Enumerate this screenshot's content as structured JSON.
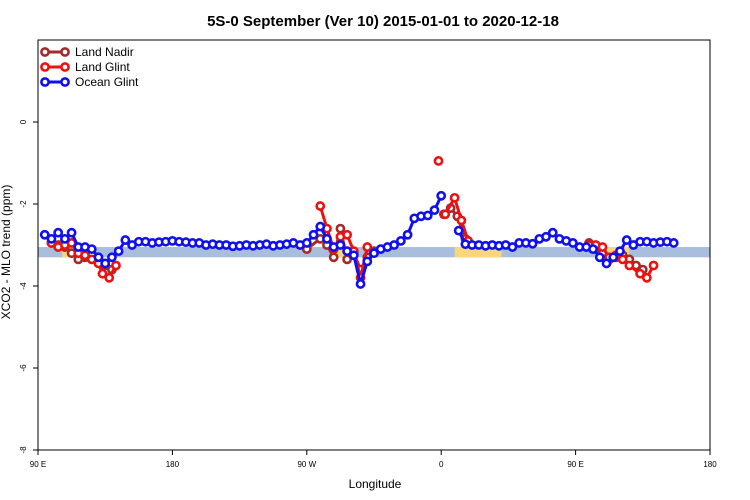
{
  "chart_data": {
    "type": "line",
    "title": "5S-0 September (Ver 10)   2015-01-01 to 2020-12-18",
    "xlabel": "Longitude",
    "ylabel": "XCO2 - MLO trend (ppm)",
    "xlim": [
      0,
      500
    ],
    "ylim": [
      -8,
      2
    ],
    "x_ticks": [
      {
        "value": 0,
        "label": "90 E"
      },
      {
        "value": 100,
        "label": "180"
      },
      {
        "value": 200,
        "label": "90 W"
      },
      {
        "value": 300,
        "label": "0"
      },
      {
        "value": 400,
        "label": "90 E"
      },
      {
        "value": 500,
        "label": "180"
      }
    ],
    "y_ticks": [
      {
        "value": 0,
        "label": "0"
      },
      {
        "value": -2,
        "label": "-2"
      },
      {
        "value": -4,
        "label": "-4"
      },
      {
        "value": -6,
        "label": "-6"
      },
      {
        "value": -8,
        "label": "-8"
      }
    ],
    "background_bands": [
      {
        "name": "ocean",
        "color": "#a9bddd",
        "y_range": [
          -3.3,
          -3.05
        ],
        "x_range": [
          0,
          500
        ]
      },
      {
        "name": "land",
        "color": "#f7d77a",
        "y_range": [
          -3.3,
          -3.05
        ],
        "x_ranges": [
          [
            18,
            40
          ],
          [
            218,
            235
          ],
          [
            310,
            345
          ],
          [
            418,
            440
          ]
        ]
      }
    ],
    "legend_position": "top-left",
    "series": [
      {
        "name": "Land Nadir",
        "color": "#a52a2a",
        "points": [
          [
            10,
            -2.95
          ],
          [
            15,
            -3.0
          ],
          [
            20,
            -3.05
          ],
          [
            25,
            -3.2
          ],
          [
            30,
            -3.35
          ],
          [
            35,
            -3.3
          ],
          [
            40,
            -3.25
          ],
          [
            45,
            -3.35
          ],
          [
            50,
            -3.5
          ],
          [
            55,
            -3.6
          ],
          null,
          [
            200,
            -3.1
          ],
          [
            210,
            -2.85
          ],
          [
            215,
            -3.0
          ],
          [
            220,
            -3.3
          ],
          [
            225,
            -2.6
          ],
          [
            230,
            -3.35
          ],
          [
            235,
            -3.2
          ],
          [
            240,
            -3.6
          ],
          [
            245,
            -3.3
          ],
          [
            250,
            -3.15
          ],
          null,
          [
            302,
            -2.25
          ],
          [
            307,
            -2.1
          ],
          [
            312,
            -2.3
          ],
          [
            318,
            -2.85
          ],
          null,
          [
            410,
            -2.95
          ],
          [
            415,
            -3.05
          ],
          [
            420,
            -3.2
          ],
          [
            425,
            -3.35
          ],
          [
            430,
            -3.3
          ],
          [
            435,
            -3.25
          ],
          [
            440,
            -3.35
          ],
          [
            445,
            -3.5
          ],
          [
            450,
            -3.6
          ]
        ]
      },
      {
        "name": "Land Glint",
        "color": "#ee1111",
        "points": [
          [
            10,
            -2.95
          ],
          [
            15,
            -3.05
          ],
          [
            20,
            -3.0
          ],
          [
            25,
            -2.95
          ],
          [
            30,
            -3.2
          ],
          [
            35,
            -3.25
          ],
          [
            40,
            -3.35
          ],
          [
            45,
            -3.45
          ],
          [
            48,
            -3.7
          ],
          [
            53,
            -3.8
          ],
          [
            58,
            -3.5
          ],
          null,
          [
            210,
            -2.05
          ],
          [
            215,
            -2.6
          ],
          [
            220,
            -3.1
          ],
          [
            225,
            -2.8
          ],
          [
            230,
            -2.75
          ],
          [
            235,
            -3.15
          ],
          [
            240,
            -3.8
          ],
          [
            245,
            -3.05
          ],
          null,
          [
            298,
            -0.95
          ],
          null,
          [
            303,
            -2.25
          ],
          [
            310,
            -1.85
          ],
          [
            315,
            -2.4
          ],
          [
            320,
            -2.9
          ],
          null,
          [
            410,
            -3.0
          ],
          [
            415,
            -3.0
          ],
          [
            420,
            -3.05
          ],
          [
            425,
            -3.3
          ],
          [
            430,
            -3.25
          ],
          [
            435,
            -3.35
          ],
          [
            440,
            -3.5
          ],
          [
            448,
            -3.7
          ],
          [
            453,
            -3.8
          ],
          [
            458,
            -3.5
          ]
        ]
      },
      {
        "name": "Ocean Glint",
        "color": "#1010ee",
        "points": [
          [
            5,
            -2.75
          ],
          [
            10,
            -2.85
          ],
          [
            15,
            -2.7
          ],
          [
            20,
            -2.85
          ],
          [
            25,
            -2.7
          ],
          [
            30,
            -3.05
          ],
          [
            35,
            -3.05
          ],
          [
            40,
            -3.1
          ],
          [
            45,
            -3.3
          ],
          [
            50,
            -3.45
          ],
          [
            55,
            -3.3
          ],
          [
            60,
            -3.15
          ],
          [
            65,
            -2.88
          ],
          [
            70,
            -3.0
          ],
          [
            75,
            -2.92
          ],
          [
            80,
            -2.92
          ],
          [
            85,
            -2.95
          ],
          [
            90,
            -2.93
          ],
          [
            95,
            -2.92
          ],
          [
            100,
            -2.9
          ],
          [
            105,
            -2.92
          ],
          [
            110,
            -2.93
          ],
          [
            115,
            -2.95
          ],
          [
            120,
            -2.95
          ],
          [
            125,
            -3.0
          ],
          [
            130,
            -2.98
          ],
          [
            135,
            -3.0
          ],
          [
            140,
            -3.0
          ],
          [
            145,
            -3.03
          ],
          [
            150,
            -3.02
          ],
          [
            155,
            -3.0
          ],
          [
            160,
            -3.02
          ],
          [
            165,
            -3.0
          ],
          [
            170,
            -2.98
          ],
          [
            175,
            -3.02
          ],
          [
            180,
            -3.0
          ],
          [
            185,
            -2.98
          ],
          [
            190,
            -2.95
          ],
          [
            195,
            -3.0
          ],
          [
            200,
            -2.95
          ],
          [
            205,
            -2.75
          ],
          [
            210,
            -2.55
          ],
          [
            215,
            -2.85
          ],
          [
            220,
            -3.05
          ],
          [
            225,
            -3.0
          ],
          [
            230,
            -3.15
          ],
          [
            235,
            -3.25
          ],
          [
            240,
            -3.95
          ],
          [
            245,
            -3.4
          ],
          [
            250,
            -3.2
          ],
          [
            255,
            -3.1
          ],
          [
            260,
            -3.05
          ],
          [
            265,
            -3.0
          ],
          [
            270,
            -2.9
          ],
          [
            275,
            -2.75
          ],
          [
            280,
            -2.35
          ],
          [
            285,
            -2.3
          ],
          [
            290,
            -2.28
          ],
          [
            295,
            -2.15
          ],
          [
            300,
            -1.8
          ],
          null,
          [
            313,
            -2.65
          ],
          [
            318,
            -2.98
          ],
          [
            323,
            -3.0
          ],
          [
            328,
            -3.0
          ],
          [
            333,
            -3.02
          ],
          [
            338,
            -3.0
          ],
          [
            343,
            -3.02
          ],
          [
            348,
            -3.0
          ],
          [
            353,
            -3.05
          ],
          [
            358,
            -2.95
          ],
          [
            363,
            -2.95
          ],
          [
            368,
            -2.97
          ],
          [
            373,
            -2.85
          ],
          [
            378,
            -2.8
          ],
          [
            383,
            -2.7
          ],
          [
            388,
            -2.85
          ],
          [
            393,
            -2.9
          ],
          [
            398,
            -2.95
          ],
          [
            403,
            -3.05
          ],
          [
            408,
            -3.05
          ],
          [
            413,
            -3.1
          ],
          [
            418,
            -3.3
          ],
          [
            423,
            -3.45
          ],
          [
            428,
            -3.3
          ],
          [
            433,
            -3.15
          ],
          [
            438,
            -2.88
          ],
          [
            443,
            -3.0
          ],
          [
            448,
            -2.92
          ],
          [
            453,
            -2.92
          ],
          [
            458,
            -2.95
          ],
          [
            463,
            -2.93
          ],
          [
            468,
            -2.92
          ],
          [
            473,
            -2.95
          ]
        ]
      }
    ]
  }
}
